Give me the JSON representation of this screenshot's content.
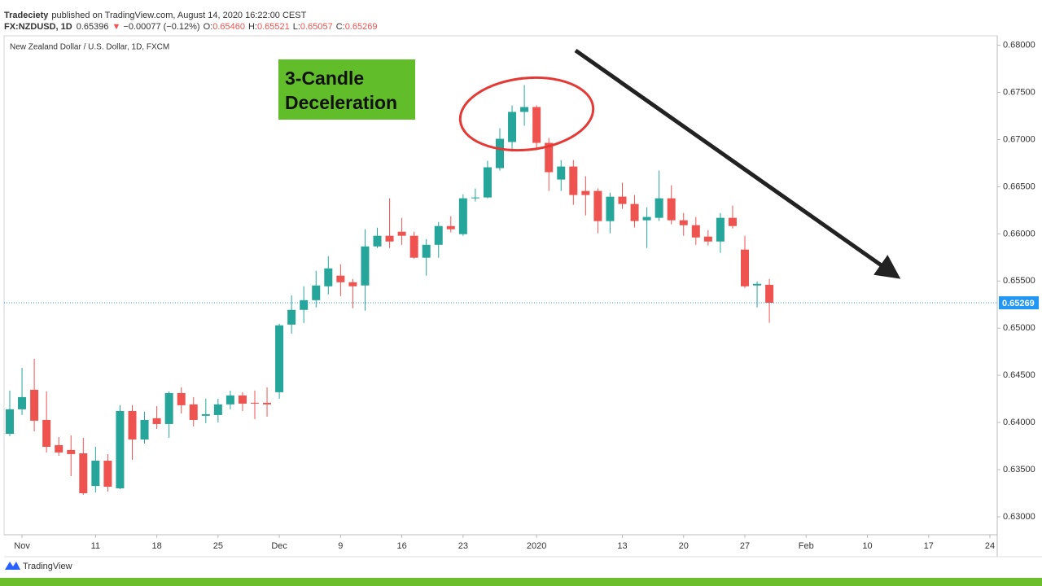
{
  "header": {
    "author": "Tradeciety",
    "published": "published on TradingView.com, August 14, 2020 16:22:00 CEST",
    "symbol": "FX:NZDUSD, 1D",
    "price": "0.65396",
    "arrow": "▼",
    "change": "−0.00077 (−0.12%)",
    "ohlc": [
      {
        "label": "O:",
        "value": "0.65460"
      },
      {
        "label": "H:",
        "value": "0.65521"
      },
      {
        "label": "L:",
        "value": "0.65057"
      },
      {
        "label": "C:",
        "value": "0.65269"
      }
    ]
  },
  "footer": {
    "brand": "TradingView"
  },
  "chart_data": {
    "type": "candlestick",
    "title": "New Zealand Dollar / U.S. Dollar, 1D, FXCM",
    "annotation": "3-Candle Deceleration",
    "up_color": "#26a69a",
    "down_color": "#ef5350",
    "grid": false,
    "x": [
      "Oct 31",
      "Nov 1",
      "Nov 4",
      "Nov 5",
      "Nov 6",
      "Nov 7",
      "Nov 8",
      "Nov 11",
      "Nov 12",
      "Nov 13",
      "Nov 14",
      "Nov 15",
      "Nov 18",
      "Nov 19",
      "Nov 20",
      "Nov 21",
      "Nov 22",
      "Nov 25",
      "Nov 26",
      "Nov 27",
      "Nov 28",
      "Nov 29",
      "Dec 2",
      "Dec 3",
      "Dec 4",
      "Dec 5",
      "Dec 6",
      "Dec 9",
      "Dec 10",
      "Dec 11",
      "Dec 12",
      "Dec 13",
      "Dec 16",
      "Dec 17",
      "Dec 18",
      "Dec 19",
      "Dec 20",
      "Dec 23",
      "Dec 24",
      "Dec 26",
      "Dec 27",
      "Dec 30",
      "Dec 31",
      "Jan 2",
      "Jan 3",
      "Jan 6",
      "Jan 7",
      "Jan 8",
      "Jan 9",
      "Jan 10",
      "Jan 13",
      "Jan 14",
      "Jan 15",
      "Jan 16",
      "Jan 17",
      "Jan 20",
      "Jan 21",
      "Jan 22",
      "Jan 23",
      "Jan 24",
      "Jan 27",
      "Jan 28",
      "Jan 29",
      "Jan 30",
      "Jan 31",
      "Feb 3",
      "Feb 4",
      "Feb 5",
      "Feb 6",
      "Feb 7",
      "Feb 10",
      "Feb 11",
      "Feb 12",
      "Feb 13",
      "Feb 14",
      "Feb 17",
      "Feb 18",
      "Feb 19",
      "Feb 20",
      "Feb 21",
      "Feb 24"
    ],
    "open": [
      0.6388,
      0.6414,
      0.64347,
      0.64027,
      0.6376,
      0.63708,
      0.63673,
      0.63327,
      0.63595,
      0.63302,
      0.64122,
      0.6382,
      0.64045,
      0.63984,
      0.64312,
      0.64192,
      0.64071,
      0.64079,
      0.64192,
      0.64287,
      0.64209,
      0.64209,
      0.64321,
      0.65038,
      0.65194,
      0.65297,
      0.65444,
      0.65557,
      0.65487,
      0.65453,
      0.65867,
      0.6598,
      0.66023,
      0.6598,
      0.65747,
      0.65884,
      0.66083,
      0.65997,
      0.66377,
      0.66386,
      0.66697,
      0.66974,
      0.67293,
      0.67345,
      0.66965,
      0.66576,
      0.66714,
      0.66455,
      0.66455,
      0.66135,
      0.66395,
      0.66317,
      0.66144,
      0.6617,
      0.66377,
      0.66144,
      0.66092,
      0.65971,
      0.65919,
      0.6617,
      0.65833,
      0.65453,
      0.6546,
      null,
      null,
      null,
      null,
      null,
      null,
      null,
      null,
      null,
      null,
      null,
      null,
      null,
      null,
      null,
      null,
      null,
      null
    ],
    "high": [
      0.64338,
      0.6458,
      0.64675,
      0.6433,
      0.63846,
      0.63863,
      0.63837,
      0.63742,
      0.63664,
      0.64183,
      0.64183,
      0.64114,
      0.64174,
      0.6433,
      0.64373,
      0.64269,
      0.64252,
      0.64252,
      0.64338,
      0.64321,
      0.64338,
      0.64373,
      0.65047,
      0.65349,
      0.65444,
      0.65609,
      0.65764,
      0.65678,
      0.65522,
      0.66049,
      0.66066,
      0.66377,
      0.6617,
      0.66023,
      0.65945,
      0.66126,
      0.66187,
      0.6642,
      0.66481,
      0.66775,
      0.6712,
      0.67362,
      0.67578,
      0.67362,
      0.67017,
      0.66783,
      0.66783,
      0.66611,
      0.66482,
      0.66437,
      0.66542,
      0.66412,
      0.66282,
      0.66671,
      0.66515,
      0.66222,
      0.66179,
      0.6604,
      0.66222,
      0.663,
      0.6598,
      0.65496,
      0.65521,
      null,
      null,
      null,
      null,
      null,
      null,
      null,
      null,
      null,
      null,
      null,
      null,
      null,
      null,
      null,
      null,
      null,
      null
    ],
    "low": [
      0.63855,
      0.64079,
      0.63906,
      0.63682,
      0.63647,
      0.63431,
      0.63233,
      0.63258,
      0.63267,
      0.63293,
      0.63604,
      0.63777,
      0.63932,
      0.63838,
      0.64097,
      0.63958,
      0.63993,
      0.64001,
      0.6414,
      0.64122,
      0.64036,
      0.64062,
      0.64252,
      0.64943,
      0.65055,
      0.6522,
      0.65358,
      0.6534,
      0.65211,
      0.65185,
      0.6585,
      0.6585,
      0.65884,
      0.65738,
      0.65557,
      0.65747,
      0.66015,
      0.6598,
      0.66343,
      0.66377,
      0.66671,
      0.66871,
      0.67147,
      0.66887,
      0.66455,
      0.66455,
      0.66308,
      0.66196,
      0.66006,
      0.66006,
      0.66265,
      0.66067,
      0.6585,
      0.66136,
      0.66101,
      0.6598,
      0.65884,
      0.65876,
      0.65798,
      0.66058,
      0.65427,
      0.6522,
      0.65057,
      null,
      null,
      null,
      null,
      null,
      null,
      null,
      null,
      null,
      null,
      null,
      null,
      null,
      null,
      null,
      null,
      null,
      null
    ],
    "close": [
      0.6414,
      0.64269,
      0.64019,
      0.63742,
      0.63682,
      0.63665,
      0.6325,
      0.63595,
      0.63319,
      0.64122,
      0.6382,
      0.64027,
      0.63984,
      0.64312,
      0.64183,
      0.64027,
      0.64088,
      0.64192,
      0.64287,
      0.642,
      0.642,
      0.64192,
      0.6503,
      0.65194,
      0.65297,
      0.65453,
      0.65634,
      0.65487,
      0.65444,
      0.65867,
      0.6598,
      0.65919,
      0.6598,
      0.65747,
      0.65884,
      0.66083,
      0.66049,
      0.66377,
      0.66386,
      0.66706,
      0.67008,
      0.67293,
      0.67345,
      0.66965,
      0.66654,
      0.66714,
      0.66412,
      0.66412,
      0.66135,
      0.66394,
      0.66317,
      0.66136,
      0.66179,
      0.66377,
      0.66144,
      0.66092,
      0.65962,
      0.65919,
      0.6617,
      0.66083,
      0.65444,
      0.6547,
      0.65269,
      null,
      null,
      null,
      null,
      null,
      null,
      null,
      null,
      null,
      null,
      null,
      null,
      null,
      null,
      null,
      null,
      null,
      null
    ],
    "last_price": 0.65269,
    "last_price_color": "#2196f3",
    "ylim": [
      0.6281,
      0.681
    ],
    "yticks": [
      {
        "value": 0.63,
        "label": "0.63000"
      },
      {
        "value": 0.635,
        "label": "0.63500"
      },
      {
        "value": 0.64,
        "label": "0.64000"
      },
      {
        "value": 0.645,
        "label": "0.64500"
      },
      {
        "value": 0.65,
        "label": "0.65000"
      },
      {
        "value": 0.655,
        "label": "0.65500"
      },
      {
        "value": 0.66,
        "label": "0.66000"
      },
      {
        "value": 0.665,
        "label": "0.66500"
      },
      {
        "value": 0.67,
        "label": "0.67000"
      },
      {
        "value": 0.675,
        "label": "0.67500"
      },
      {
        "value": 0.68,
        "label": "0.68000"
      }
    ],
    "xticks": [
      {
        "value": "Nov 1",
        "label": "Nov"
      },
      {
        "value": "Nov 11",
        "label": "11"
      },
      {
        "value": "Nov 18",
        "label": "18"
      },
      {
        "value": "Nov 25",
        "label": "25"
      },
      {
        "value": "Dec 2",
        "label": "Dec"
      },
      {
        "value": "Dec 9",
        "label": "9"
      },
      {
        "value": "Dec 16",
        "label": "16"
      },
      {
        "value": "Dec 23",
        "label": "23"
      },
      {
        "value": "Jan 2",
        "label": "2020"
      },
      {
        "value": "Jan 13",
        "label": "13"
      },
      {
        "value": "Jan 20",
        "label": "20"
      },
      {
        "value": "Jan 27",
        "label": "27"
      },
      {
        "value": "Feb 3",
        "label": "Feb"
      },
      {
        "value": "Feb 10",
        "label": "10"
      },
      {
        "value": "Feb 17",
        "label": "17"
      },
      {
        "value": "Feb 24",
        "label": "24"
      }
    ]
  }
}
